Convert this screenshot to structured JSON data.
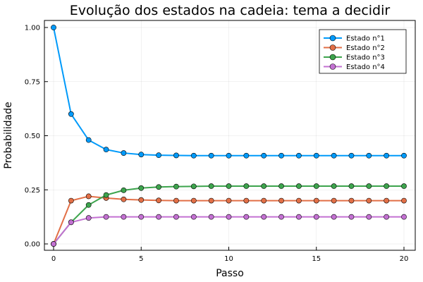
{
  "chart_data": {
    "type": "line",
    "title": "Evolução dos estados na cadeia: tema a decidir",
    "xlabel": "Passo",
    "ylabel": "Probabilidade",
    "xlim": [
      0,
      20
    ],
    "ylim": [
      0,
      1
    ],
    "xticks": [
      "0",
      "5",
      "10",
      "15",
      "20"
    ],
    "yticks": [
      "0.00",
      "0.25",
      "0.50",
      "0.75",
      "1.00"
    ],
    "grid": true,
    "legend_position": "top-right",
    "x": [
      0,
      1,
      2,
      3,
      4,
      5,
      6,
      7,
      8,
      9,
      10,
      11,
      12,
      13,
      14,
      15,
      16,
      17,
      18,
      19,
      20
    ],
    "series": [
      {
        "name": "Estado n°1",
        "color": "#009AFA",
        "values": [
          1.0,
          0.6,
          0.48,
          0.436,
          0.42,
          0.413,
          0.41,
          0.409,
          0.408,
          0.408,
          0.408,
          0.408,
          0.408,
          0.408,
          0.408,
          0.408,
          0.408,
          0.408,
          0.408,
          0.408,
          0.408
        ]
      },
      {
        "name": "Estado n°2",
        "color": "#E26F46",
        "values": [
          0.0,
          0.2,
          0.22,
          0.212,
          0.206,
          0.203,
          0.201,
          0.2,
          0.2,
          0.2,
          0.2,
          0.2,
          0.2,
          0.2,
          0.2,
          0.2,
          0.2,
          0.2,
          0.2,
          0.2,
          0.2
        ]
      },
      {
        "name": "Estado n°3",
        "color": "#3DA44D",
        "values": [
          0.0,
          0.1,
          0.18,
          0.226,
          0.248,
          0.258,
          0.263,
          0.265,
          0.266,
          0.267,
          0.267,
          0.267,
          0.267,
          0.267,
          0.267,
          0.267,
          0.267,
          0.267,
          0.267,
          0.267,
          0.267
        ]
      },
      {
        "name": "Estado n°4",
        "color": "#C371D2",
        "values": [
          0.0,
          0.1,
          0.12,
          0.125,
          0.125,
          0.125,
          0.125,
          0.125,
          0.125,
          0.125,
          0.125,
          0.125,
          0.125,
          0.125,
          0.125,
          0.125,
          0.125,
          0.125,
          0.125,
          0.125,
          0.125
        ]
      }
    ]
  }
}
